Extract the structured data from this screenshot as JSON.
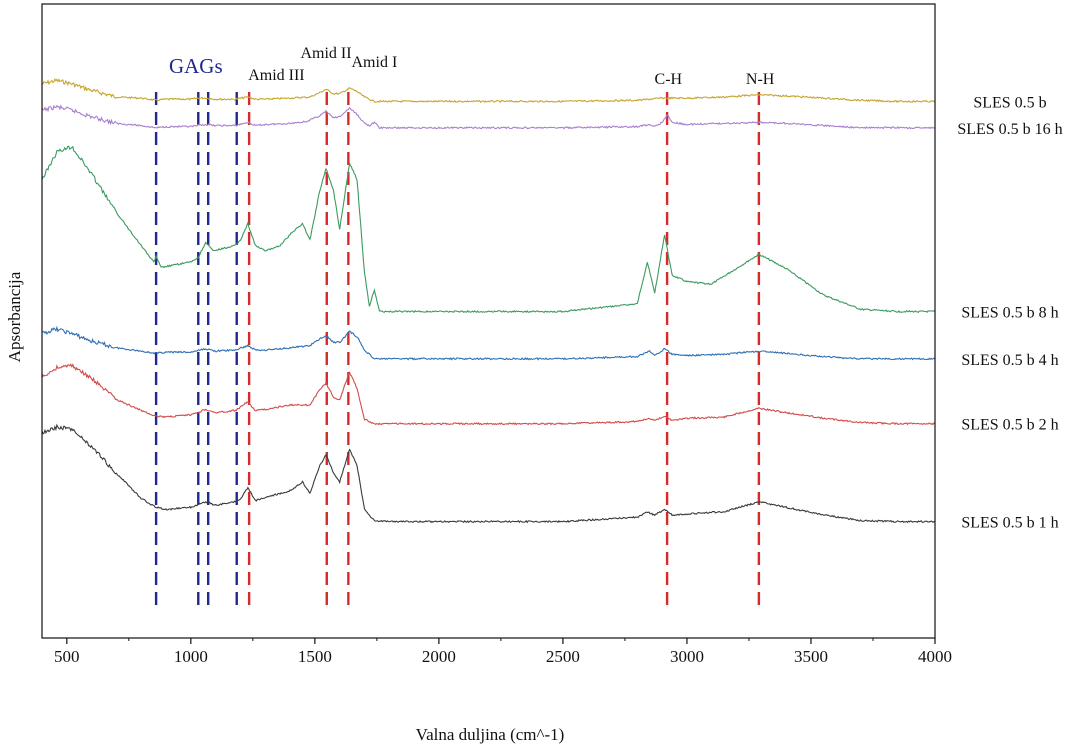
{
  "chart_data": {
    "type": "line",
    "title": "",
    "xlabel": "Valna duljina (cm^-1)",
    "ylabel": "Apsorbancija",
    "xlim": [
      400,
      4000
    ],
    "xticks": [
      500,
      1000,
      1500,
      2000,
      2500,
      3000,
      3500,
      4000
    ],
    "grid": false,
    "legend_placement": "right of each trace",
    "series": [
      {
        "name": "SLES 0.5 b",
        "color": "#c8a42c",
        "points": [
          [
            400,
            0.92
          ],
          [
            460,
            0.95
          ],
          [
            520,
            0.92
          ],
          [
            600,
            0.86
          ],
          [
            700,
            0.8
          ],
          [
            800,
            0.79
          ],
          [
            860,
            0.77
          ],
          [
            900,
            0.78
          ],
          [
            1000,
            0.78
          ],
          [
            1030,
            0.79
          ],
          [
            1060,
            0.79
          ],
          [
            1100,
            0.78
          ],
          [
            1180,
            0.78
          ],
          [
            1230,
            0.8
          ],
          [
            1260,
            0.78
          ],
          [
            1300,
            0.78
          ],
          [
            1400,
            0.79
          ],
          [
            1480,
            0.8
          ],
          [
            1520,
            0.84
          ],
          [
            1545,
            0.87
          ],
          [
            1575,
            0.83
          ],
          [
            1600,
            0.83
          ],
          [
            1640,
            0.88
          ],
          [
            1670,
            0.85
          ],
          [
            1700,
            0.8
          ],
          [
            1740,
            0.76
          ],
          [
            1800,
            0.76
          ],
          [
            2000,
            0.76
          ],
          [
            2500,
            0.76
          ],
          [
            2800,
            0.77
          ],
          [
            2900,
            0.79
          ],
          [
            3000,
            0.79
          ],
          [
            3150,
            0.8
          ],
          [
            3290,
            0.82
          ],
          [
            3400,
            0.81
          ],
          [
            3550,
            0.79
          ],
          [
            3700,
            0.77
          ],
          [
            3850,
            0.76
          ],
          [
            4000,
            0.76
          ]
        ]
      },
      {
        "name": "SLES 0.5 b 16 h",
        "color": "#a97fd0",
        "points": [
          [
            400,
            0.68
          ],
          [
            460,
            0.71
          ],
          [
            520,
            0.68
          ],
          [
            600,
            0.62
          ],
          [
            700,
            0.56
          ],
          [
            800,
            0.54
          ],
          [
            860,
            0.52
          ],
          [
            900,
            0.53
          ],
          [
            1000,
            0.53
          ],
          [
            1060,
            0.55
          ],
          [
            1100,
            0.54
          ],
          [
            1180,
            0.54
          ],
          [
            1230,
            0.57
          ],
          [
            1260,
            0.54
          ],
          [
            1300,
            0.55
          ],
          [
            1400,
            0.56
          ],
          [
            1470,
            0.58
          ],
          [
            1520,
            0.63
          ],
          [
            1545,
            0.67
          ],
          [
            1575,
            0.61
          ],
          [
            1600,
            0.62
          ],
          [
            1640,
            0.7
          ],
          [
            1670,
            0.64
          ],
          [
            1700,
            0.56
          ],
          [
            1720,
            0.54
          ],
          [
            1740,
            0.57
          ],
          [
            1760,
            0.52
          ],
          [
            1900,
            0.52
          ],
          [
            2500,
            0.52
          ],
          [
            2800,
            0.53
          ],
          [
            2850,
            0.55
          ],
          [
            2870,
            0.53
          ],
          [
            2900,
            0.57
          ],
          [
            2920,
            0.64
          ],
          [
            2940,
            0.57
          ],
          [
            3000,
            0.55
          ],
          [
            3150,
            0.56
          ],
          [
            3290,
            0.57
          ],
          [
            3400,
            0.56
          ],
          [
            3550,
            0.54
          ],
          [
            3700,
            0.52
          ],
          [
            3850,
            0.52
          ],
          [
            4000,
            0.52
          ]
        ]
      },
      {
        "name": "SLES 0.5 b 8 h",
        "color": "#3b9a5f",
        "points": [
          [
            400,
            0.05
          ],
          [
            460,
            0.3
          ],
          [
            520,
            0.35
          ],
          [
            600,
            0.1
          ],
          [
            700,
            -0.25
          ],
          [
            800,
            -0.55
          ],
          [
            850,
            -0.7
          ],
          [
            860,
            -0.65
          ],
          [
            880,
            -0.75
          ],
          [
            950,
            -0.72
          ],
          [
            1000,
            -0.7
          ],
          [
            1030,
            -0.66
          ],
          [
            1060,
            -0.52
          ],
          [
            1090,
            -0.6
          ],
          [
            1180,
            -0.55
          ],
          [
            1200,
            -0.5
          ],
          [
            1230,
            -0.35
          ],
          [
            1260,
            -0.55
          ],
          [
            1300,
            -0.6
          ],
          [
            1360,
            -0.55
          ],
          [
            1400,
            -0.45
          ],
          [
            1450,
            -0.35
          ],
          [
            1480,
            -0.5
          ],
          [
            1520,
            -0.05
          ],
          [
            1545,
            0.15
          ],
          [
            1575,
            -0.05
          ],
          [
            1600,
            -0.4
          ],
          [
            1640,
            0.2
          ],
          [
            1670,
            0.05
          ],
          [
            1700,
            -0.8
          ],
          [
            1720,
            -1.1
          ],
          [
            1740,
            -0.95
          ],
          [
            1760,
            -1.15
          ],
          [
            1900,
            -1.15
          ],
          [
            2500,
            -1.15
          ],
          [
            2800,
            -1.08
          ],
          [
            2840,
            -0.7
          ],
          [
            2870,
            -0.98
          ],
          [
            2910,
            -0.45
          ],
          [
            2940,
            -0.82
          ],
          [
            3000,
            -0.88
          ],
          [
            3100,
            -0.9
          ],
          [
            3290,
            -0.63
          ],
          [
            3400,
            -0.76
          ],
          [
            3550,
            -1.0
          ],
          [
            3700,
            -1.13
          ],
          [
            3850,
            -1.15
          ],
          [
            4000,
            -1.15
          ]
        ]
      },
      {
        "name": "SLES 0.5 b 4 h",
        "color": "#2f6fb2",
        "points": [
          [
            400,
            -1.35
          ],
          [
            460,
            -1.31
          ],
          [
            520,
            -1.35
          ],
          [
            600,
            -1.42
          ],
          [
            700,
            -1.48
          ],
          [
            800,
            -1.51
          ],
          [
            860,
            -1.53
          ],
          [
            900,
            -1.52
          ],
          [
            1000,
            -1.52
          ],
          [
            1060,
            -1.49
          ],
          [
            1100,
            -1.51
          ],
          [
            1180,
            -1.5
          ],
          [
            1230,
            -1.46
          ],
          [
            1260,
            -1.5
          ],
          [
            1300,
            -1.5
          ],
          [
            1400,
            -1.48
          ],
          [
            1480,
            -1.46
          ],
          [
            1520,
            -1.4
          ],
          [
            1545,
            -1.37
          ],
          [
            1575,
            -1.43
          ],
          [
            1600,
            -1.43
          ],
          [
            1640,
            -1.33
          ],
          [
            1670,
            -1.38
          ],
          [
            1700,
            -1.5
          ],
          [
            1740,
            -1.58
          ],
          [
            1800,
            -1.58
          ],
          [
            2000,
            -1.58
          ],
          [
            2500,
            -1.58
          ],
          [
            2800,
            -1.56
          ],
          [
            2850,
            -1.51
          ],
          [
            2870,
            -1.55
          ],
          [
            2910,
            -1.49
          ],
          [
            2940,
            -1.54
          ],
          [
            3000,
            -1.55
          ],
          [
            3150,
            -1.54
          ],
          [
            3290,
            -1.51
          ],
          [
            3400,
            -1.53
          ],
          [
            3550,
            -1.56
          ],
          [
            3700,
            -1.58
          ],
          [
            3850,
            -1.58
          ],
          [
            4000,
            -1.58
          ]
        ]
      },
      {
        "name": "SLES 0.5 b 2 h",
        "color": "#d24c4c",
        "points": [
          [
            400,
            -1.75
          ],
          [
            460,
            -1.66
          ],
          [
            520,
            -1.64
          ],
          [
            600,
            -1.76
          ],
          [
            700,
            -1.95
          ],
          [
            800,
            -2.05
          ],
          [
            860,
            -2.1
          ],
          [
            900,
            -2.11
          ],
          [
            1000,
            -2.09
          ],
          [
            1060,
            -2.04
          ],
          [
            1100,
            -2.07
          ],
          [
            1180,
            -2.05
          ],
          [
            1230,
            -1.97
          ],
          [
            1260,
            -2.05
          ],
          [
            1300,
            -2.04
          ],
          [
            1400,
            -2.0
          ],
          [
            1480,
            -2.0
          ],
          [
            1520,
            -1.86
          ],
          [
            1545,
            -1.8
          ],
          [
            1575,
            -1.93
          ],
          [
            1600,
            -1.95
          ],
          [
            1640,
            -1.7
          ],
          [
            1670,
            -1.85
          ],
          [
            1700,
            -2.13
          ],
          [
            1740,
            -2.17
          ],
          [
            1800,
            -2.17
          ],
          [
            2000,
            -2.17
          ],
          [
            2500,
            -2.17
          ],
          [
            2800,
            -2.15
          ],
          [
            2850,
            -2.12
          ],
          [
            2870,
            -2.14
          ],
          [
            2910,
            -2.1
          ],
          [
            2940,
            -2.14
          ],
          [
            3000,
            -2.12
          ],
          [
            3150,
            -2.11
          ],
          [
            3290,
            -2.03
          ],
          [
            3400,
            -2.07
          ],
          [
            3550,
            -2.12
          ],
          [
            3700,
            -2.16
          ],
          [
            3850,
            -2.17
          ],
          [
            4000,
            -2.17
          ]
        ]
      },
      {
        "name": "SLES 0.5 b 1 h",
        "color": "#3a3a3a",
        "points": [
          [
            400,
            -2.25
          ],
          [
            460,
            -2.2
          ],
          [
            520,
            -2.22
          ],
          [
            600,
            -2.38
          ],
          [
            700,
            -2.62
          ],
          [
            800,
            -2.85
          ],
          [
            860,
            -2.93
          ],
          [
            900,
            -2.95
          ],
          [
            1000,
            -2.93
          ],
          [
            1060,
            -2.88
          ],
          [
            1100,
            -2.91
          ],
          [
            1180,
            -2.88
          ],
          [
            1200,
            -2.86
          ],
          [
            1230,
            -2.75
          ],
          [
            1260,
            -2.87
          ],
          [
            1300,
            -2.84
          ],
          [
            1400,
            -2.78
          ],
          [
            1450,
            -2.7
          ],
          [
            1480,
            -2.8
          ],
          [
            1520,
            -2.55
          ],
          [
            1545,
            -2.45
          ],
          [
            1575,
            -2.62
          ],
          [
            1600,
            -2.7
          ],
          [
            1640,
            -2.4
          ],
          [
            1670,
            -2.55
          ],
          [
            1700,
            -2.95
          ],
          [
            1740,
            -3.05
          ],
          [
            1800,
            -3.06
          ],
          [
            2000,
            -3.06
          ],
          [
            2500,
            -3.06
          ],
          [
            2800,
            -3.02
          ],
          [
            2840,
            -2.97
          ],
          [
            2870,
            -3.0
          ],
          [
            2910,
            -2.95
          ],
          [
            2940,
            -3.0
          ],
          [
            3000,
            -2.99
          ],
          [
            3150,
            -2.97
          ],
          [
            3290,
            -2.88
          ],
          [
            3400,
            -2.93
          ],
          [
            3550,
            -3.0
          ],
          [
            3700,
            -3.05
          ],
          [
            3850,
            -3.06
          ],
          [
            4000,
            -3.06
          ]
        ]
      }
    ],
    "reference_lines": [
      {
        "x": 860,
        "color": "#1f2a8c"
      },
      {
        "x": 1030,
        "color": "#1f2a8c"
      },
      {
        "x": 1070,
        "color": "#1f2a8c"
      },
      {
        "x": 1185,
        "color": "#1f2a8c"
      },
      {
        "x": 1235,
        "color": "#d42a2a"
      },
      {
        "x": 1548,
        "color": "#d42a2a"
      },
      {
        "x": 1635,
        "color": "#d42a2a"
      },
      {
        "x": 2920,
        "color": "#d42a2a"
      },
      {
        "x": 3290,
        "color": "#d42a2a"
      }
    ],
    "annotations": [
      {
        "text": "GAGs",
        "x": 1020,
        "color": "#1f2a8c"
      },
      {
        "text": "Amid III",
        "x": 1345,
        "color": "#111111"
      },
      {
        "text": "Amid II",
        "x": 1545,
        "color": "#111111"
      },
      {
        "text": "Amid I",
        "x": 1740,
        "color": "#111111"
      },
      {
        "text": "C-H",
        "x": 2925,
        "color": "#111111"
      },
      {
        "text": "N-H",
        "x": 3295,
        "color": "#111111"
      }
    ]
  }
}
